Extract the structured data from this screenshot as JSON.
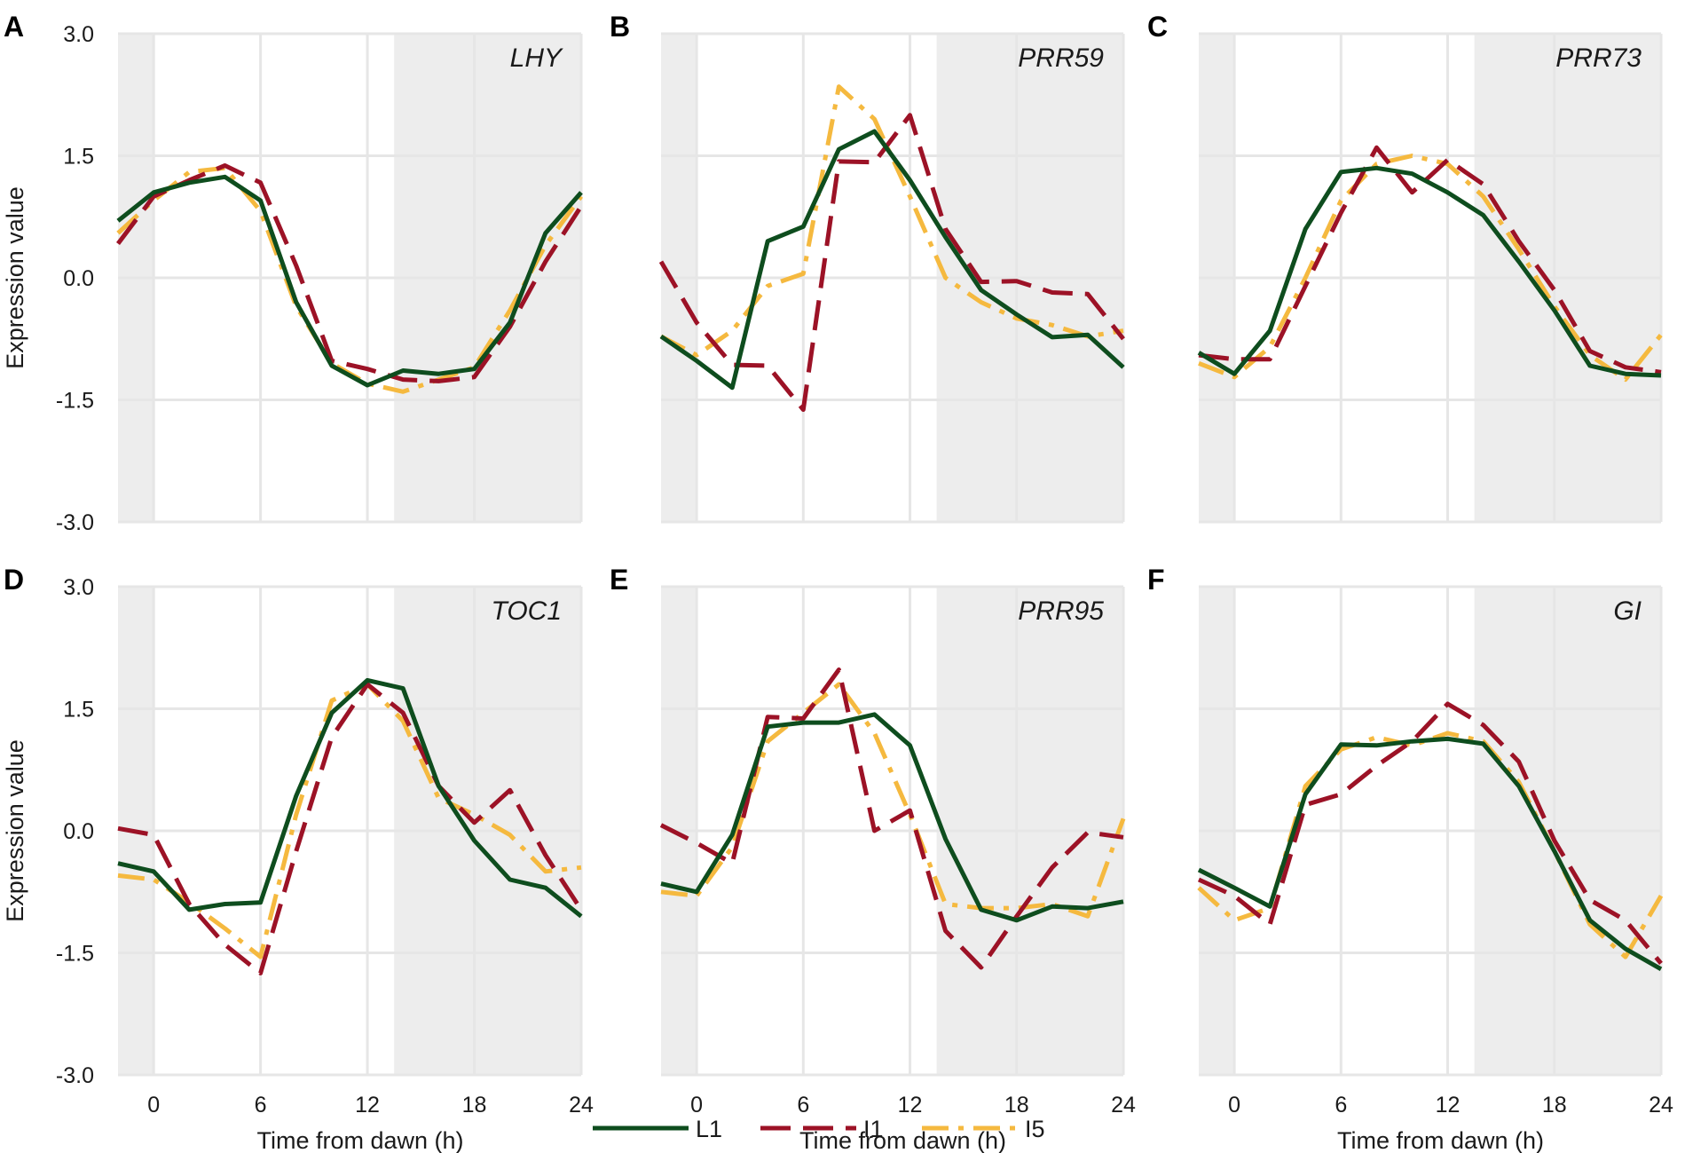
{
  "chart_data": {
    "type": "line",
    "x_label": "Time from dawn (h)",
    "y_label": "Expression value",
    "x_ticks": [
      0,
      6,
      12,
      18,
      24
    ],
    "x_range": [
      -2,
      24
    ],
    "y_ticks": [
      "3.0",
      "1.5",
      "0.0",
      "-1.5",
      "-3.0"
    ],
    "y_range": [
      -3.0,
      3.0
    ],
    "night_periods": [
      [
        -2,
        0
      ],
      [
        13.5,
        24
      ]
    ],
    "legend": [
      {
        "name": "L1",
        "color": "#0e4d1e",
        "dash": "solid"
      },
      {
        "name": "I1",
        "color": "#9c1226",
        "dash": "dashed"
      },
      {
        "name": "I5",
        "color": "#f5b93f",
        "dash": "dotdash"
      }
    ],
    "x": [
      -2,
      0,
      2,
      4,
      6,
      8,
      10,
      12,
      14,
      16,
      18,
      20,
      22,
      24
    ],
    "panels": [
      {
        "letter": "A",
        "gene": "LHY",
        "series": {
          "L1": [
            0.7,
            1.05,
            1.17,
            1.24,
            0.95,
            -0.3,
            -1.08,
            -1.32,
            -1.14,
            -1.18,
            -1.12,
            -0.55,
            0.55,
            1.05
          ],
          "I1": [
            0.42,
            1.0,
            1.2,
            1.38,
            1.17,
            0.15,
            -1.02,
            -1.12,
            -1.25,
            -1.27,
            -1.22,
            -0.6,
            0.2,
            0.88
          ],
          "I5": [
            0.55,
            0.95,
            1.3,
            1.35,
            0.82,
            -0.35,
            -1.05,
            -1.3,
            -1.4,
            -1.25,
            -1.1,
            -0.4,
            0.4,
            1.0
          ]
        }
      },
      {
        "letter": "B",
        "gene": "PRR59",
        "series": {
          "L1": [
            -0.72,
            -1.02,
            -1.35,
            0.45,
            0.63,
            1.58,
            1.8,
            1.2,
            0.5,
            -0.15,
            -0.45,
            -0.73,
            -0.7,
            -1.1
          ],
          "I1": [
            0.2,
            -0.55,
            -1.07,
            -1.08,
            -1.62,
            1.43,
            1.42,
            2.0,
            0.6,
            -0.05,
            -0.04,
            -0.18,
            -0.2,
            -0.75
          ],
          "I5": [
            -0.72,
            -0.95,
            -0.65,
            -0.1,
            0.05,
            2.35,
            1.95,
            1.0,
            0.0,
            -0.3,
            -0.5,
            -0.58,
            -0.72,
            -0.65
          ]
        }
      },
      {
        "letter": "C",
        "gene": "PRR73",
        "series": {
          "L1": [
            -0.92,
            -1.18,
            -0.65,
            0.6,
            1.3,
            1.35,
            1.28,
            1.05,
            0.77,
            0.2,
            -0.4,
            -1.08,
            -1.18,
            -1.2
          ],
          "I1": [
            -0.95,
            -1.0,
            -1.0,
            -0.1,
            0.8,
            1.6,
            1.05,
            1.45,
            1.15,
            0.45,
            -0.15,
            -0.9,
            -1.1,
            -1.16
          ],
          "I5": [
            -1.05,
            -1.22,
            -0.85,
            0.0,
            0.95,
            1.4,
            1.5,
            1.4,
            1.0,
            0.35,
            -0.35,
            -0.95,
            -1.25,
            -0.7
          ]
        }
      },
      {
        "letter": "D",
        "gene": "TOC1",
        "series": {
          "L1": [
            -0.4,
            -0.5,
            -0.97,
            -0.9,
            -0.88,
            0.43,
            1.45,
            1.85,
            1.75,
            0.55,
            -0.12,
            -0.6,
            -0.7,
            -1.05
          ],
          "I1": [
            0.03,
            -0.05,
            -0.9,
            -1.4,
            -1.75,
            -0.25,
            1.15,
            1.8,
            1.45,
            0.55,
            0.1,
            0.5,
            -0.3,
            -0.97
          ],
          "I5": [
            -0.55,
            -0.6,
            -0.88,
            -1.2,
            -1.55,
            0.2,
            1.6,
            1.8,
            1.35,
            0.4,
            0.2,
            -0.05,
            -0.5,
            -0.45
          ]
        }
      },
      {
        "letter": "E",
        "gene": "PRR95",
        "series": {
          "L1": [
            -0.65,
            -0.75,
            -0.05,
            1.28,
            1.33,
            1.33,
            1.43,
            1.05,
            -0.1,
            -0.97,
            -1.1,
            -0.93,
            -0.95,
            -0.87
          ],
          "I1": [
            0.07,
            -0.15,
            -0.4,
            1.4,
            1.38,
            1.98,
            0.0,
            0.25,
            -1.23,
            -1.68,
            -1.05,
            -0.45,
            -0.02,
            -0.08
          ],
          "I5": [
            -0.75,
            -0.8,
            -0.2,
            1.1,
            1.45,
            1.8,
            1.2,
            0.2,
            -0.9,
            -0.95,
            -0.95,
            -0.9,
            -1.05,
            0.15
          ]
        }
      },
      {
        "letter": "F",
        "gene": "GI",
        "series": {
          "L1": [
            -0.48,
            -0.7,
            -0.93,
            0.45,
            1.06,
            1.05,
            1.1,
            1.13,
            1.07,
            0.55,
            -0.25,
            -1.1,
            -1.45,
            -1.7
          ],
          "I1": [
            -0.6,
            -0.8,
            -1.15,
            0.32,
            0.45,
            0.8,
            1.1,
            1.56,
            1.3,
            0.85,
            -0.12,
            -0.85,
            -1.1,
            -1.63
          ],
          "I5": [
            -0.7,
            -1.1,
            -0.95,
            0.55,
            1.0,
            1.15,
            1.05,
            1.2,
            1.1,
            0.6,
            -0.25,
            -1.15,
            -1.55,
            -0.8
          ]
        }
      }
    ]
  }
}
